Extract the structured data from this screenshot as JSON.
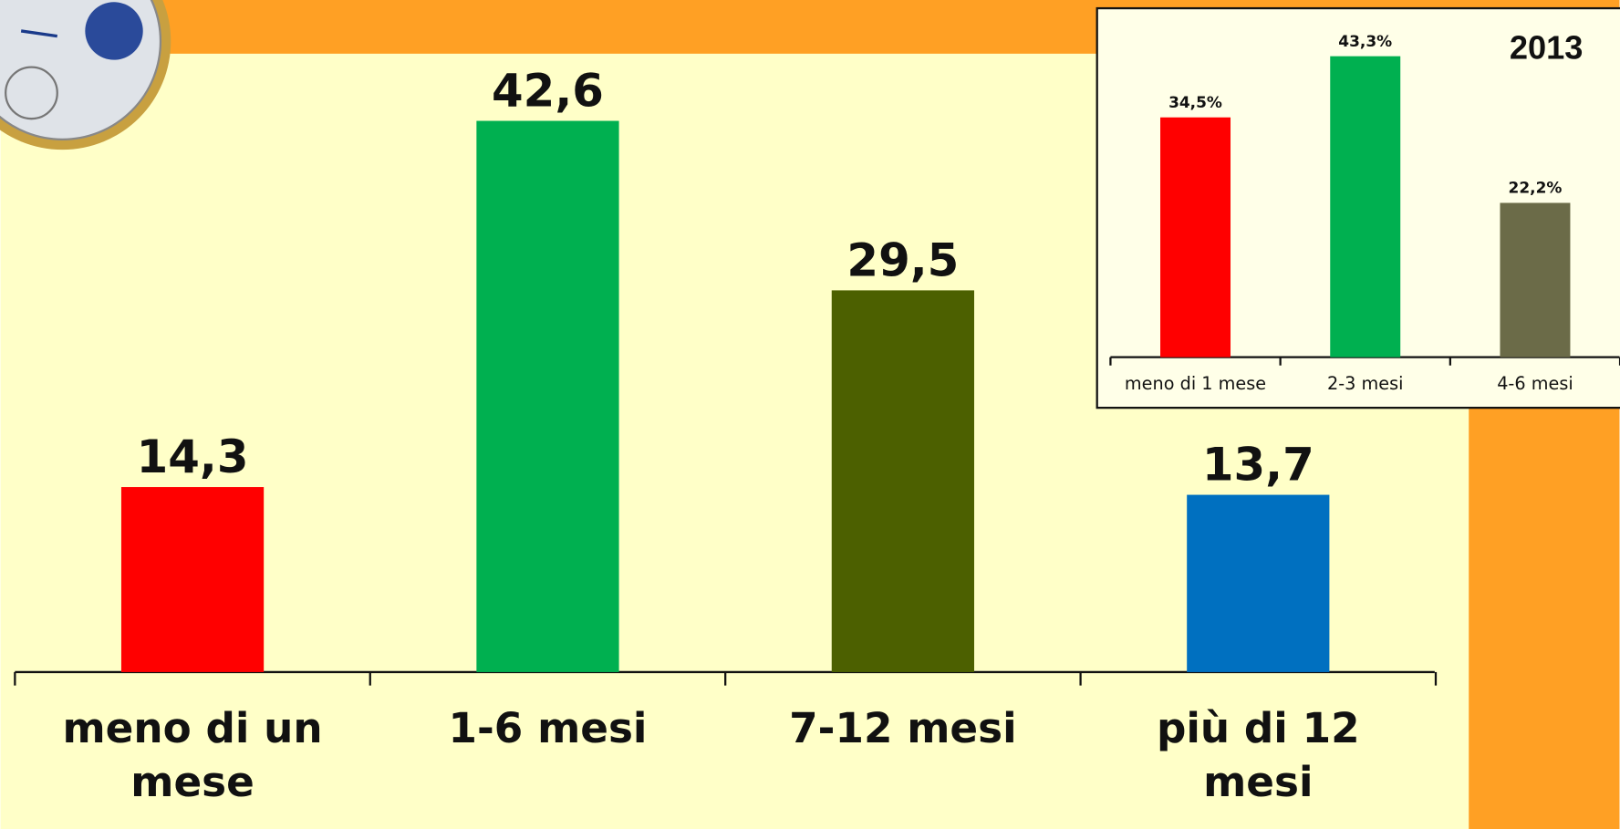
{
  "chart_data": [
    {
      "type": "bar",
      "categories": [
        "meno di un mese",
        "1-6 mesi",
        "7-12 mesi",
        "più di 12 mesi"
      ],
      "values": [
        14.3,
        42.6,
        29.5,
        13.7
      ],
      "value_labels": [
        "14,3",
        "42,6",
        "29,5",
        "13,7"
      ],
      "colors": [
        "#ff0000",
        "#00b050",
        "#4c6000",
        "#0070c0"
      ],
      "ylim": [
        0,
        45
      ]
    },
    {
      "type": "bar",
      "title": "2013",
      "categories": [
        "meno di 1 mese",
        "2-3 mesi",
        "4-6 mesi"
      ],
      "values": [
        34.5,
        43.3,
        22.2
      ],
      "value_labels": [
        "34,5%",
        "43,3%",
        "22,2%"
      ],
      "colors": [
        "#ff0000",
        "#00b050",
        "#6b6b48"
      ],
      "ylim": [
        0,
        45
      ]
    }
  ]
}
